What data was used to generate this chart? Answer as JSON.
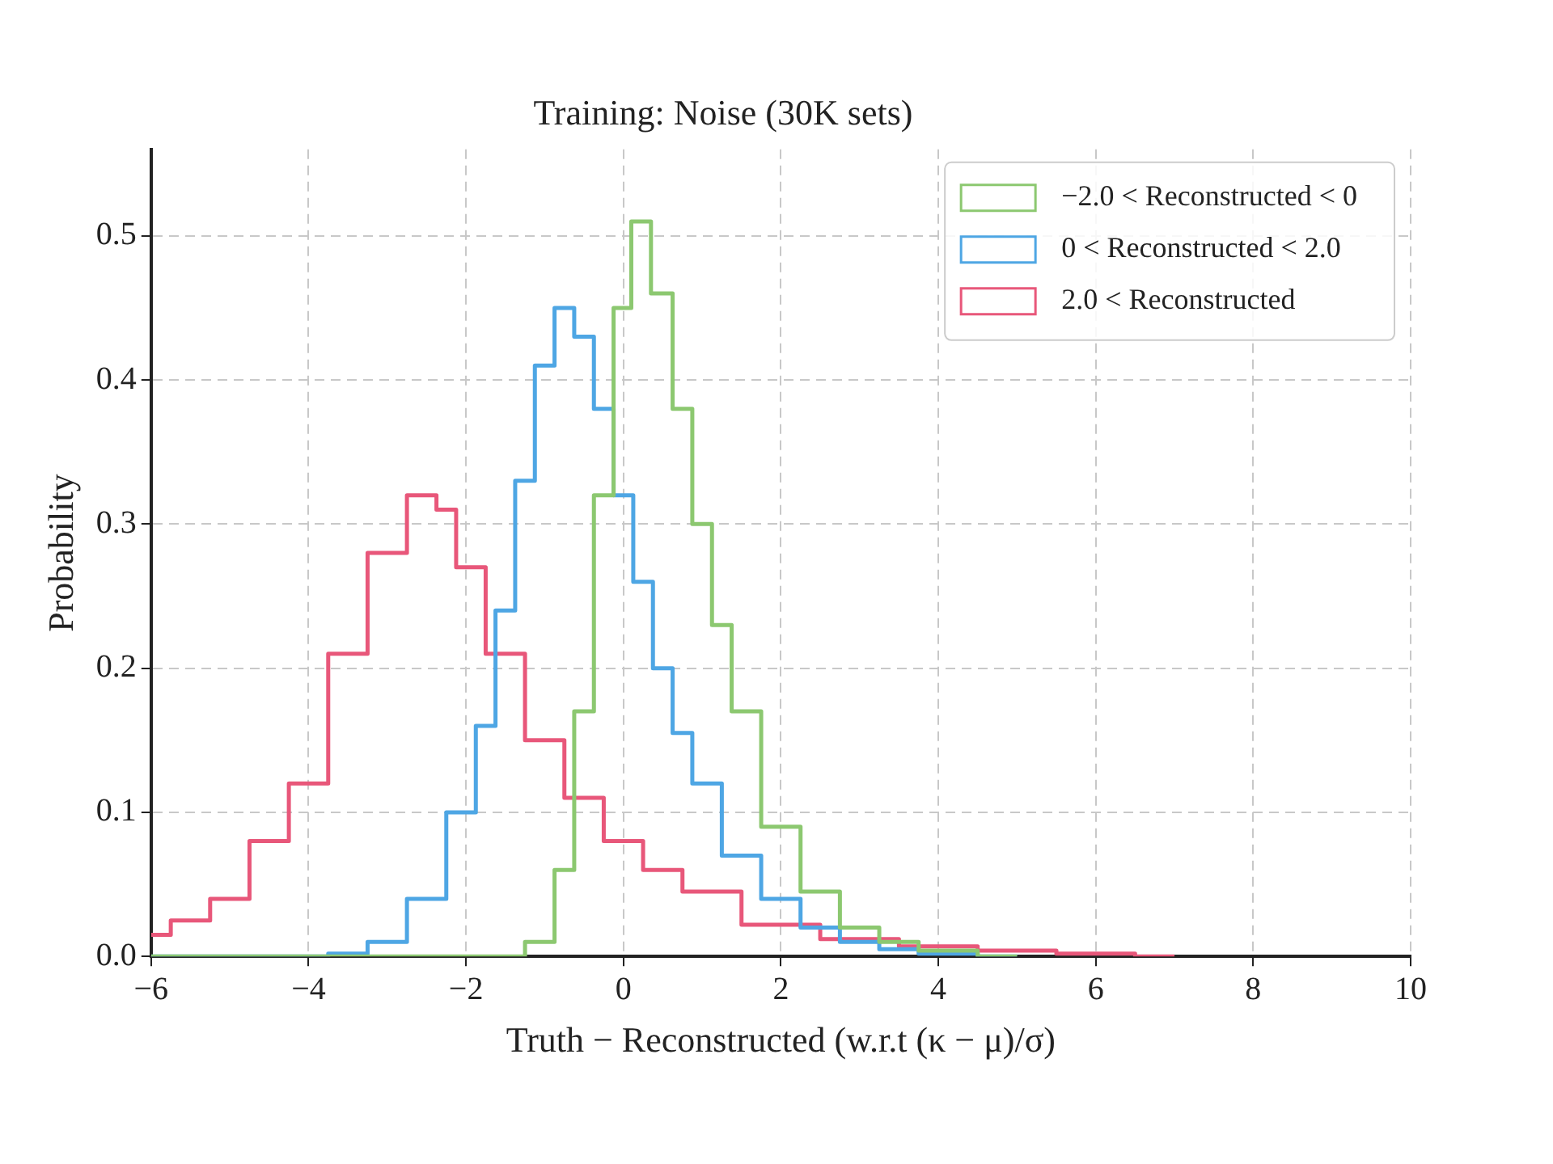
{
  "chart_data": {
    "type": "step",
    "title": "Training: Noise (30K sets)",
    "xlabel": "Truth − Reconstructed (w.r.t (κ − μ)/σ)",
    "ylabel": "Probability",
    "xlim": [
      -6,
      10
    ],
    "xticks": [
      -6,
      -4,
      -2,
      0,
      2,
      4,
      6,
      8,
      10
    ],
    "ylim": [
      0,
      0.56
    ],
    "yticks": [
      {
        "value": 0,
        "label": "0.0"
      },
      0.1,
      0.2,
      0.3,
      0.4,
      0.5
    ],
    "grid": true,
    "legend": "top right",
    "series": [
      {
        "name": "−2.0 < Reconstructed < 0",
        "color": "#8cc870",
        "x": [
          -6,
          -1.5,
          -1,
          -0.75,
          -0.5,
          -0.25,
          0,
          0.2,
          0.5,
          0.75,
          1,
          1.25,
          1.5,
          2,
          2.5,
          3,
          3.5,
          4,
          5
        ],
        "values": [
          0,
          0,
          0.01,
          0.06,
          0.17,
          0.32,
          0.45,
          0.51,
          0.46,
          0.38,
          0.3,
          0.23,
          0.17,
          0.09,
          0.045,
          0.02,
          0.01,
          0.004,
          0
        ]
      },
      {
        "name": "0 < Reconstructed < 2.0",
        "color": "#4ea6e4",
        "x": [
          -6,
          -4,
          -3.5,
          -3,
          -2.5,
          -2,
          -1.75,
          -1.5,
          -1.25,
          -1,
          -0.75,
          -0.5,
          -0.25,
          0,
          0.25,
          0.5,
          0.75,
          1,
          1.5,
          2,
          2.5,
          3,
          3.5,
          4,
          5
        ],
        "values": [
          0,
          0,
          0.002,
          0.01,
          0.04,
          0.1,
          0.16,
          0.24,
          0.33,
          0.41,
          0.45,
          0.43,
          0.38,
          0.32,
          0.26,
          0.2,
          0.155,
          0.12,
          0.07,
          0.04,
          0.02,
          0.01,
          0.005,
          0.002,
          0
        ]
      },
      {
        "name": "2.0 < Reconstructed",
        "color": "#e8577a",
        "x": [
          -6,
          -5.5,
          -5,
          -4.5,
          -4,
          -3.5,
          -3,
          -2.5,
          -2.25,
          -2,
          -1.5,
          -1,
          -0.5,
          0,
          0.5,
          1,
          2,
          3,
          4,
          5,
          6,
          7
        ],
        "values": [
          0.015,
          0.025,
          0.04,
          0.08,
          0.12,
          0.21,
          0.28,
          0.32,
          0.31,
          0.27,
          0.21,
          0.15,
          0.11,
          0.08,
          0.06,
          0.045,
          0.022,
          0.012,
          0.007,
          0.004,
          0.002,
          0
        ]
      }
    ]
  }
}
